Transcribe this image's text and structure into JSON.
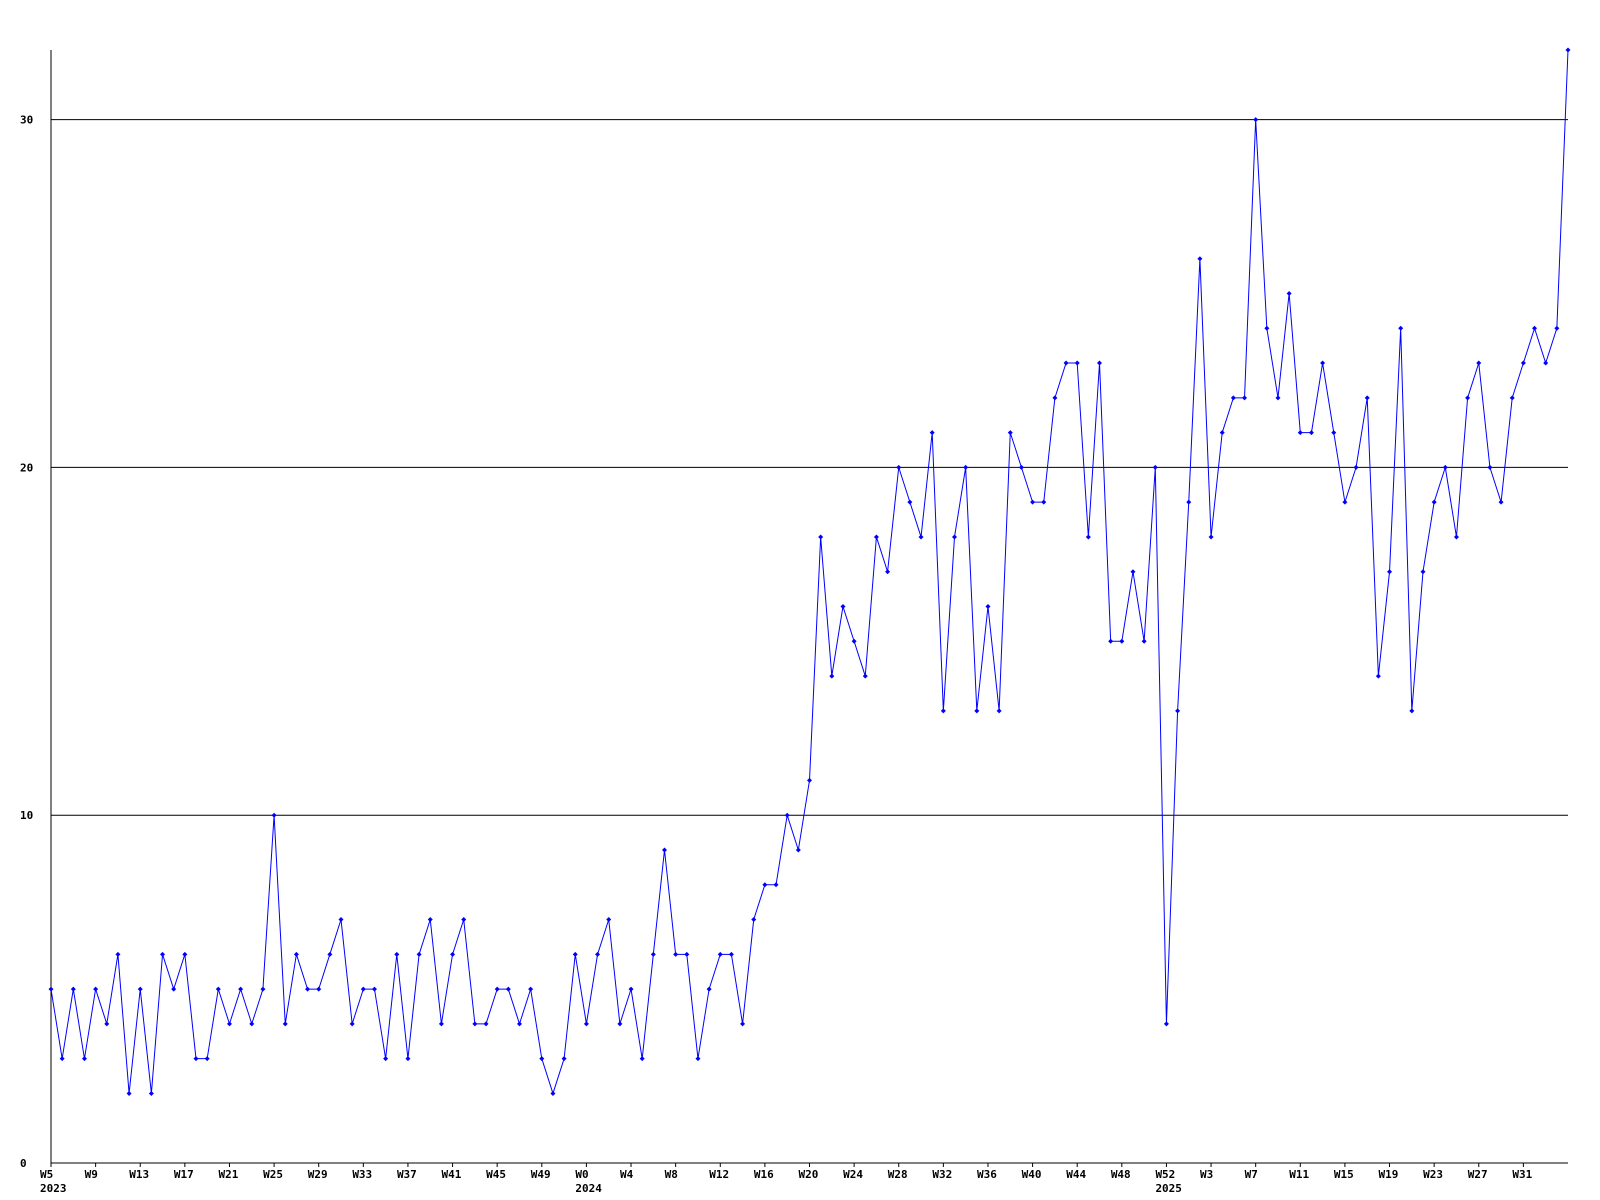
{
  "chart_data": {
    "type": "line",
    "categories": [
      "W5",
      null,
      null,
      null,
      "W9",
      null,
      null,
      null,
      "W13",
      null,
      null,
      null,
      "W17",
      null,
      null,
      null,
      "W21",
      null,
      null,
      null,
      "W25",
      null,
      null,
      null,
      "W29",
      null,
      null,
      null,
      "W33",
      null,
      null,
      null,
      "W37",
      null,
      null,
      null,
      "W41",
      null,
      null,
      null,
      "W45",
      null,
      null,
      null,
      "W49",
      null,
      null,
      null,
      "W0",
      null,
      null,
      null,
      "W4",
      null,
      null,
      null,
      "W8",
      null,
      null,
      null,
      "W12",
      null,
      null,
      null,
      "W16",
      null,
      null,
      null,
      "W20",
      null,
      null,
      null,
      "W24",
      null,
      null,
      null,
      "W28",
      null,
      null,
      null,
      "W32",
      null,
      null,
      null,
      "W36",
      null,
      null,
      null,
      "W40",
      null,
      null,
      null,
      "W44",
      null,
      null,
      null,
      "W48",
      null,
      null,
      null,
      "W52",
      null,
      null,
      null,
      "W3",
      null,
      null,
      null,
      "W7",
      null,
      null,
      null,
      "W11",
      null,
      null,
      null,
      "W15",
      null,
      null,
      null,
      "W19",
      null,
      null,
      null,
      "W23",
      null,
      null,
      null,
      "W27",
      null,
      null,
      null,
      "W31",
      null,
      null,
      null,
      null
    ],
    "category_years": [
      "2023",
      null,
      null,
      null,
      null,
      null,
      null,
      null,
      null,
      null,
      null,
      null,
      null,
      null,
      null,
      null,
      null,
      null,
      null,
      null,
      null,
      null,
      null,
      null,
      null,
      null,
      null,
      null,
      null,
      null,
      null,
      null,
      null,
      null,
      null,
      null,
      null,
      null,
      null,
      null,
      null,
      null,
      null,
      null,
      null,
      null,
      null,
      null,
      "2024",
      null,
      null,
      null,
      null,
      null,
      null,
      null,
      null,
      null,
      null,
      null,
      null,
      null,
      null,
      null,
      null,
      null,
      null,
      null,
      null,
      null,
      null,
      null,
      null,
      null,
      null,
      null,
      null,
      null,
      null,
      null,
      null,
      null,
      null,
      null,
      null,
      null,
      null,
      null,
      null,
      null,
      null,
      null,
      null,
      null,
      null,
      null,
      null,
      null,
      null,
      null,
      "2025",
      null,
      null,
      null,
      null,
      null,
      null,
      null,
      null,
      null,
      null,
      null,
      null,
      null,
      null,
      null,
      null,
      null,
      null,
      null,
      null,
      null,
      null,
      null,
      null,
      null,
      null,
      null,
      null,
      null,
      null,
      null,
      null,
      null,
      null,
      null,
      null
    ],
    "series": [
      {
        "color": "#0000ff",
        "values": [
          5,
          3,
          5,
          3,
          5,
          4,
          6,
          2,
          5,
          2,
          6,
          5,
          6,
          3,
          3,
          5,
          4,
          5,
          4,
          5,
          10,
          4,
          6,
          5,
          5,
          6,
          7,
          4,
          5,
          5,
          3,
          6,
          3,
          6,
          7,
          4,
          6,
          7,
          4,
          4,
          5,
          5,
          4,
          5,
          3,
          2,
          3,
          6,
          4,
          6,
          7,
          4,
          5,
          3,
          6,
          9,
          6,
          6,
          3,
          5,
          6,
          6,
          4,
          7,
          8,
          8,
          10,
          9,
          11,
          18,
          14,
          16,
          15,
          14,
          18,
          17,
          20,
          19,
          18,
          21,
          13,
          18,
          20,
          13,
          16,
          13,
          21,
          20,
          19,
          19,
          22,
          23,
          23,
          18,
          23,
          15,
          15,
          17,
          15,
          20,
          4,
          13,
          19,
          26,
          18,
          21,
          22,
          22,
          30,
          24,
          22,
          25,
          21,
          21,
          23,
          21,
          19,
          20,
          22,
          14,
          17,
          24,
          13,
          17,
          19,
          20,
          18,
          22,
          23,
          20,
          19,
          22,
          23,
          24,
          23,
          24,
          32
        ]
      }
    ],
    "ylim": [
      0,
      32
    ],
    "yticks": [
      0,
      10,
      20,
      30
    ],
    "grid": true,
    "grid_color": "#000000"
  }
}
